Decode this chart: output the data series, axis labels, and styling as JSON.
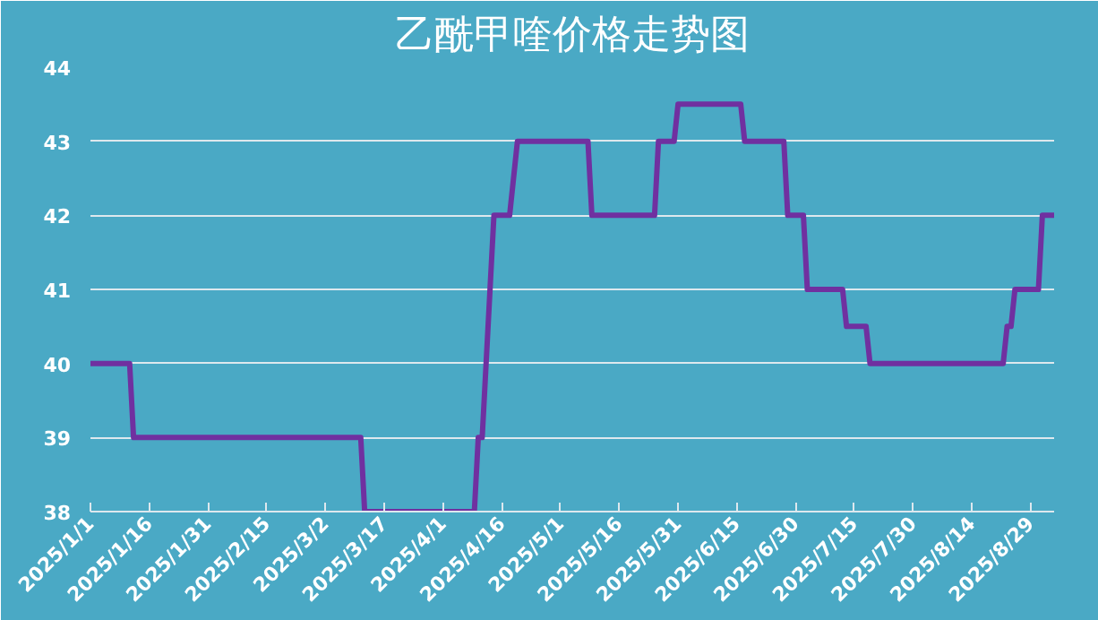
{
  "chart_data": {
    "type": "line",
    "title": "乙酰甲喹价格走势图",
    "x": [
      "2025-01-01",
      "2025-01-11",
      "2025-01-12",
      "2025-03-11",
      "2025-03-12",
      "2025-04-09",
      "2025-04-10",
      "2025-04-11",
      "2025-04-13",
      "2025-04-14",
      "2025-04-18",
      "2025-04-20",
      "2025-05-08",
      "2025-05-09",
      "2025-05-25",
      "2025-05-26",
      "2025-05-30",
      "2025-05-31",
      "2025-06-16",
      "2025-06-17",
      "2025-06-27",
      "2025-06-28",
      "2025-07-02",
      "2025-07-03",
      "2025-07-12",
      "2025-07-13",
      "2025-07-18",
      "2025-07-19",
      "2025-08-22",
      "2025-08-23",
      "2025-08-24",
      "2025-08-25",
      "2025-08-31",
      "2025-09-01",
      "2025-09-04"
    ],
    "series": [
      {
        "color": "#7030a0",
        "values": [
          40,
          40,
          39,
          39,
          38,
          38,
          39,
          39,
          41,
          42,
          42,
          43,
          43,
          42,
          42,
          43,
          43,
          43.5,
          43.5,
          43,
          43,
          42,
          42,
          41,
          41,
          40.5,
          40.5,
          40,
          40,
          40.5,
          40.5,
          41,
          41,
          42,
          42
        ]
      }
    ],
    "xlim": [
      "2025-01-01",
      "2025-09-04"
    ],
    "xticks": [
      {
        "value": "2025-01-01",
        "label": "2025/1/1"
      },
      {
        "value": "2025-01-16",
        "label": "2025/1/16"
      },
      {
        "value": "2025-01-31",
        "label": "2025/1/31"
      },
      {
        "value": "2025-02-15",
        "label": "2025/2/15"
      },
      {
        "value": "2025-03-02",
        "label": "2025/3/2"
      },
      {
        "value": "2025-03-17",
        "label": "2025/3/17"
      },
      {
        "value": "2025-04-01",
        "label": "2025/4/1"
      },
      {
        "value": "2025-04-16",
        "label": "2025/4/16"
      },
      {
        "value": "2025-05-01",
        "label": "2025/5/1"
      },
      {
        "value": "2025-05-16",
        "label": "2025/5/16"
      },
      {
        "value": "2025-05-31",
        "label": "2025/5/31"
      },
      {
        "value": "2025-06-15",
        "label": "2025/6/15"
      },
      {
        "value": "2025-06-30",
        "label": "2025/6/30"
      },
      {
        "value": "2025-07-15",
        "label": "2025/7/15"
      },
      {
        "value": "2025-07-30",
        "label": "2025/7/30"
      },
      {
        "value": "2025-08-14",
        "label": "2025/8/14"
      },
      {
        "value": "2025-08-29",
        "label": "2025/8/29"
      }
    ],
    "ylim": [
      38,
      44
    ],
    "yticks": [
      38,
      39,
      40,
      41,
      42,
      43,
      44
    ],
    "grid": "y",
    "marker": "none",
    "line_style": "solid"
  }
}
